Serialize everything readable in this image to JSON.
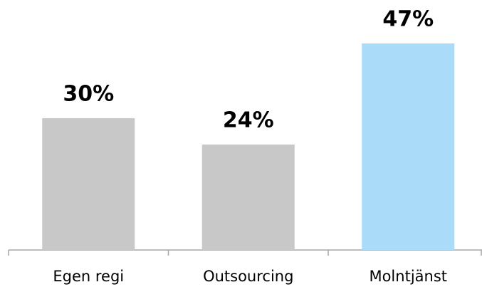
{
  "chart_data": {
    "type": "bar",
    "categories": [
      "Egen regi",
      "Outsourcing",
      "Molntjänst"
    ],
    "values": [
      30,
      24,
      47
    ],
    "value_labels": [
      "30%",
      "24%",
      "47%"
    ],
    "colors": [
      "#c8c8c8",
      "#c8c8c8",
      "#aadcfa"
    ]
  }
}
